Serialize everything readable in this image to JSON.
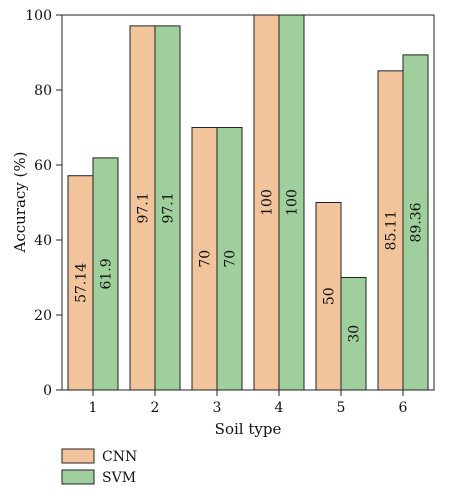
{
  "chart_data": {
    "type": "bar",
    "categories": [
      "1",
      "2",
      "3",
      "4",
      "5",
      "6"
    ],
    "series": [
      {
        "name": "CNN",
        "values": [
          57.14,
          97.1,
          70,
          100,
          50,
          85.11
        ],
        "labels": [
          "57.14",
          "97.1",
          "70",
          "100",
          "50",
          "85.11"
        ],
        "color": "#f2c49b"
      },
      {
        "name": "SVM",
        "values": [
          61.9,
          97.1,
          70,
          100,
          30,
          89.36
        ],
        "labels": [
          "61.9",
          "97.1",
          "70",
          "100",
          "30",
          "89.36"
        ],
        "color": "#9fcf9c"
      }
    ],
    "xlabel": "Soil type",
    "ylabel": "Accuracy (%)",
    "ylim": [
      0,
      100
    ],
    "yticks": [
      "0",
      "20",
      "40",
      "60",
      "80",
      "100"
    ],
    "grid": false,
    "legend_position": "bottom-left"
  }
}
